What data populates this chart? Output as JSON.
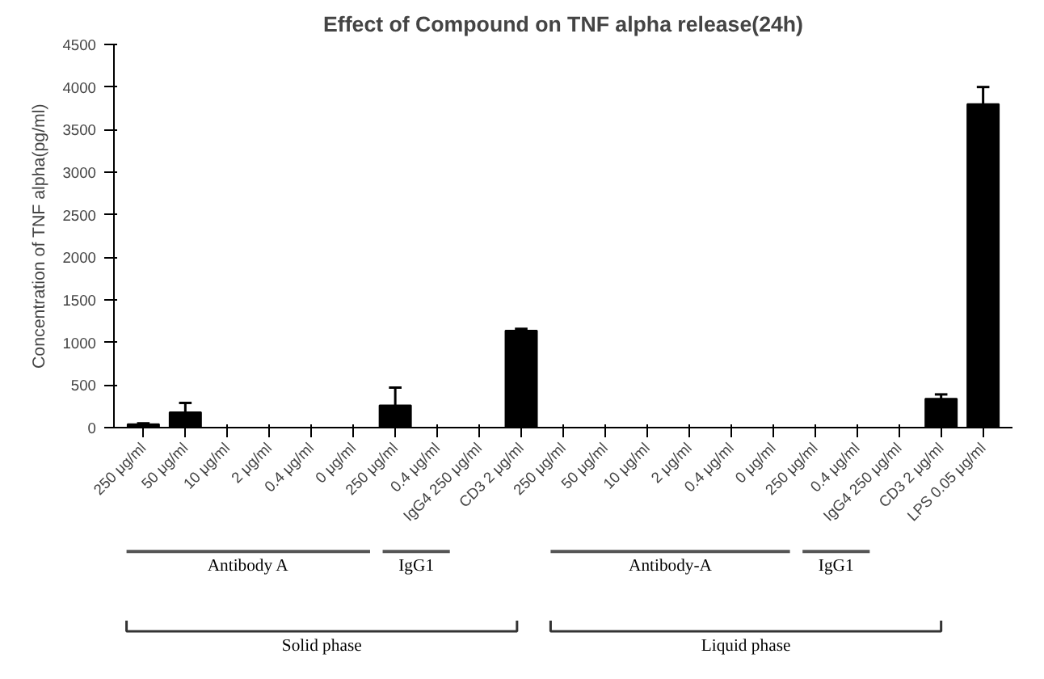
{
  "chart_data": {
    "type": "bar",
    "title": "Effect of Compound on TNF alpha release(24h)",
    "ylabel": "Concentration of TNF alpha(pg/ml)",
    "categories": [
      "250 μg/ml",
      "50 μg/ml",
      "10 μg/ml",
      "2 μg/ml",
      "0.4 μg/ml",
      "0 μg/ml",
      "250 μg/ml",
      "0.4 μg/ml",
      "IgG4 250 μg/ml",
      "CD3 2 μg/ml",
      "250 μg/ml",
      "50 μg/ml",
      "10 μg/ml",
      "2 μg/ml",
      "0.4 μg/ml",
      "0 μg/ml",
      "250 μg/ml",
      "0.4 μg/ml",
      "IgG4 250 μg/ml",
      "CD3 2 μg/ml",
      "LPS 0.05 μg/ml"
    ],
    "values": [
      40,
      180,
      null,
      0,
      0,
      0,
      260,
      0,
      0,
      1140,
      0,
      0,
      0,
      0,
      0,
      0,
      0,
      0,
      0,
      340,
      3800
    ],
    "errors": [
      [
        40,
        50
      ],
      [
        180,
        290
      ],
      null,
      null,
      null,
      null,
      [
        260,
        470
      ],
      null,
      null,
      [
        1140,
        1160
      ],
      null,
      null,
      null,
      null,
      null,
      null,
      null,
      null,
      null,
      [
        340,
        390
      ],
      [
        3800,
        4000
      ]
    ],
    "color": "#000000",
    "ylim": [
      0,
      4500
    ],
    "yticks": [
      0,
      500,
      1000,
      1500,
      2000,
      2500,
      3000,
      3500,
      4000,
      4500
    ],
    "grid": false,
    "annotations": [
      "Antibody A",
      "IgG1",
      "Solid phase",
      "Antibody-A",
      "IgG1",
      "Liquid phase"
    ]
  }
}
